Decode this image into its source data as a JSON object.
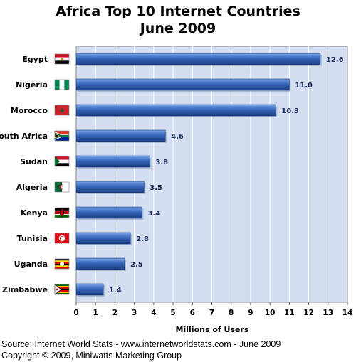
{
  "chart_data": {
    "type": "bar",
    "orientation": "horizontal",
    "title": "Africa Top 10 Internet Countries",
    "subtitle": "June 2009",
    "categories": [
      "Egypt",
      "Nigeria",
      "Morocco",
      "South Africa",
      "Sudan",
      "Algeria",
      "Kenya",
      "Tunisia",
      "Uganda",
      "Zimbabwe"
    ],
    "values": [
      12.6,
      11.0,
      10.3,
      4.6,
      3.8,
      3.5,
      3.4,
      2.8,
      2.5,
      1.4
    ],
    "value_labels": [
      "12.6",
      "11.0",
      "10.3",
      "4.6",
      "3.8",
      "3.5",
      "3.4",
      "2.8",
      "2.5",
      "1.4"
    ],
    "xlabel": "Millions of Users",
    "ylabel": "",
    "xlim": [
      0,
      14
    ],
    "ticks": [
      "0",
      "1",
      "2",
      "3",
      "4",
      "5",
      "6",
      "7",
      "8",
      "9",
      "10",
      "11",
      "12",
      "13",
      "14"
    ],
    "grid": true,
    "legend": "none",
    "colors": {
      "bar": "#2f5fb3",
      "bar_light": "#6f9ae0",
      "bar_dark": "#1c3f85",
      "plot_bg": "#d3dff0",
      "grid": "#ffffff"
    }
  },
  "flags": [
    {
      "country": "Egypt",
      "icon": "egypt-flag-icon"
    },
    {
      "country": "Nigeria",
      "icon": "nigeria-flag-icon"
    },
    {
      "country": "Morocco",
      "icon": "morocco-flag-icon"
    },
    {
      "country": "South Africa",
      "icon": "south-africa-flag-icon"
    },
    {
      "country": "Sudan",
      "icon": "sudan-flag-icon"
    },
    {
      "country": "Algeria",
      "icon": "algeria-flag-icon"
    },
    {
      "country": "Kenya",
      "icon": "kenya-flag-icon"
    },
    {
      "country": "Tunisia",
      "icon": "tunisia-flag-icon"
    },
    {
      "country": "Uganda",
      "icon": "uganda-flag-icon"
    },
    {
      "country": "Zimbabwe",
      "icon": "zimbabwe-flag-icon"
    }
  ],
  "footer": {
    "source": "Source: Internet World Stats  -  www.internetworldstats.com - June 2009",
    "copyright": "Copyright © 2009, Miniwatts Marketing Group"
  }
}
